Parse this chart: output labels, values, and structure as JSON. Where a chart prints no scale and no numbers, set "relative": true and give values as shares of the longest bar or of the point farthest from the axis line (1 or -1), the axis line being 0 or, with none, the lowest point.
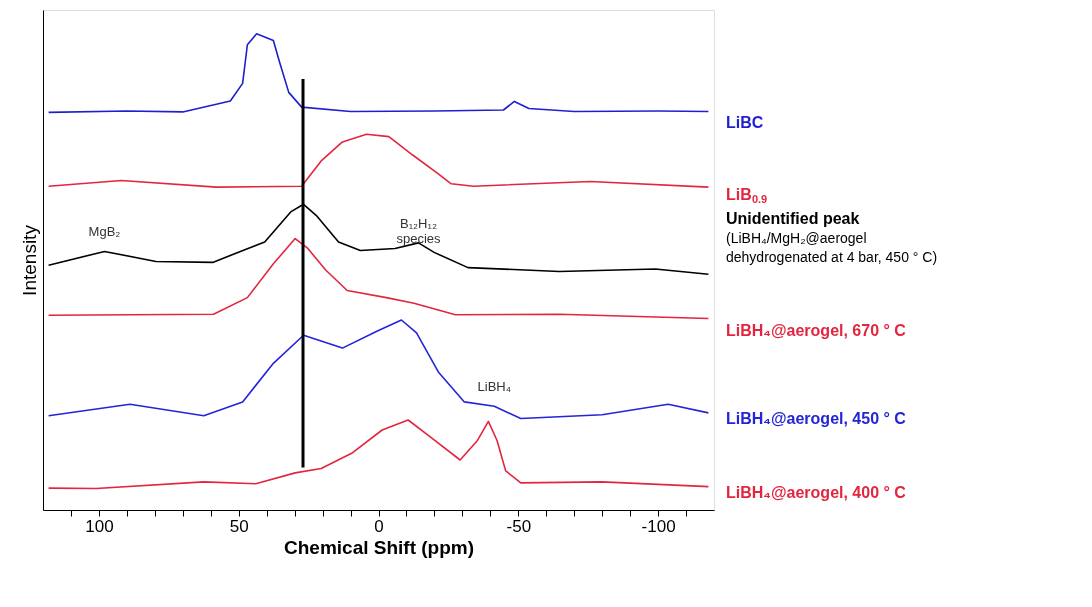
{
  "chart_data": {
    "type": "line",
    "relative": true,
    "xlabel": "Chemical Shift  (ppm)",
    "ylabel": "Intensity",
    "xlim": [
      120,
      -120
    ],
    "xticks": [
      {
        "value": 110,
        "label": null
      },
      100,
      {
        "value": 90,
        "label": null
      },
      {
        "value": 80,
        "label": null
      },
      {
        "value": 70,
        "label": null
      },
      {
        "value": 60,
        "label": null
      },
      50,
      {
        "value": 40,
        "label": null
      },
      {
        "value": 30,
        "label": null
      },
      {
        "value": 20,
        "label": null
      },
      {
        "value": 10,
        "label": null
      },
      0,
      {
        "value": -10,
        "label": null
      },
      {
        "value": -20,
        "label": null
      },
      {
        "value": -30,
        "label": null
      },
      {
        "value": -40,
        "label": null
      },
      -50,
      {
        "value": -60,
        "label": null
      },
      {
        "value": -70,
        "label": null
      },
      {
        "value": -80,
        "label": null
      },
      {
        "value": -90,
        "label": null
      },
      -100,
      {
        "value": -110,
        "label": null
      }
    ],
    "grid": false,
    "legend": false,
    "line_style": "solid",
    "marker": "none",
    "series": [
      {
        "name": "LiBC",
        "color": "#1f1fd0",
        "x": [
          118,
          90,
          70,
          53,
          48.6,
          46.9,
          43.6,
          37.6,
          35.4,
          32.1,
          27.5,
          10,
          -20,
          -44.7,
          -48.6,
          -53.8,
          -70,
          -100,
          -118
        ],
        "values": [
          0.835,
          0.838,
          0.836,
          0.859,
          0.896,
          0.977,
          1.0,
          0.986,
          0.941,
          0.877,
          0.846,
          0.837,
          0.838,
          0.84,
          0.858,
          0.843,
          0.837,
          0.838,
          0.837
        ]
      },
      {
        "name": "LiB$_{0.9}$",
        "color": "#e3263f",
        "x": [
          118,
          92,
          58,
          27.5,
          20.5,
          12.9,
          4.3,
          -3.7,
          -12.1,
          -21.4,
          -26,
          -34,
          -75.7,
          -118
        ],
        "values": [
          0.68,
          0.692,
          0.678,
          0.68,
          0.733,
          0.773,
          0.789,
          0.784,
          0.746,
          0.706,
          0.685,
          0.68,
          0.69,
          0.678
        ]
      },
      {
        "name": "Unidentified peak",
        "color": "#000000",
        "x": [
          118,
          98,
          79.6,
          59.3,
          40.7,
          31.4,
          26.8,
          22,
          14.3,
          6.5,
          -5.9,
          -14.3,
          -19.9,
          -32,
          -64.7,
          -99,
          -118
        ],
        "values": [
          0.514,
          0.543,
          0.522,
          0.52,
          0.563,
          0.626,
          0.642,
          0.617,
          0.563,
          0.545,
          0.549,
          0.561,
          0.541,
          0.509,
          0.501,
          0.506,
          0.495
        ]
      },
      {
        "name": "LiBH₄@aerogel, 670 ° C",
        "color": "#e3263f",
        "x": [
          118,
          59,
          46.9,
          37.6,
          29.8,
          25.4,
          18.9,
          11.2,
          -2.8,
          -12.7,
          -27.5,
          -64.7,
          -118
        ],
        "values": [
          0.409,
          0.411,
          0.446,
          0.517,
          0.57,
          0.55,
          0.504,
          0.461,
          0.446,
          0.434,
          0.41,
          0.411,
          0.402
        ]
      },
      {
        "name": "LiBH₄@aerogel, 450 ° C",
        "color": "#2424d8",
        "x": [
          118,
          88.9,
          62.5,
          48.6,
          37.6,
          26.8,
          12.9,
          0.4,
          -8.2,
          -13.6,
          -21.4,
          -30.7,
          -41.4,
          -50.9,
          -80,
          -103.6,
          -118
        ],
        "values": [
          0.198,
          0.222,
          0.198,
          0.227,
          0.308,
          0.367,
          0.34,
          0.376,
          0.399,
          0.372,
          0.29,
          0.227,
          0.218,
          0.192,
          0.2,
          0.222,
          0.204
        ]
      },
      {
        "name": "LiBH₄@aerogel, 400 ° C",
        "color": "#e3263f",
        "x": [
          118,
          101,
          62.5,
          43.9,
          29.8,
          20.5,
          9.6,
          -1.3,
          -10.6,
          -18.4,
          -29.2,
          -35.4,
          -39.3,
          -42.4,
          -45.5,
          -50.9,
          -80,
          -118
        ],
        "values": [
          0.046,
          0.045,
          0.059,
          0.055,
          0.078,
          0.087,
          0.119,
          0.168,
          0.189,
          0.154,
          0.105,
          0.146,
          0.186,
          0.146,
          0.082,
          0.057,
          0.059,
          0.049
        ]
      },
      {
        "color": "#000000",
        "x": [
          27,
          27
        ],
        "values": [
          0.905,
          0.089
        ]
      }
    ],
    "annotations": [
      {
        "text": "MgB₂",
        "x": 98,
        "y": 0.543
      },
      {
        "text": "B₁₂H₁₂ species",
        "x": -14.3,
        "y": 0.561
      },
      {
        "text": "LiBH₄",
        "x": -41.4,
        "y": 0.218
      },
      "(LiBH₄/MgH₂@aerogel dehydrogenated at 4 bar, 450 ° C)"
    ]
  }
}
